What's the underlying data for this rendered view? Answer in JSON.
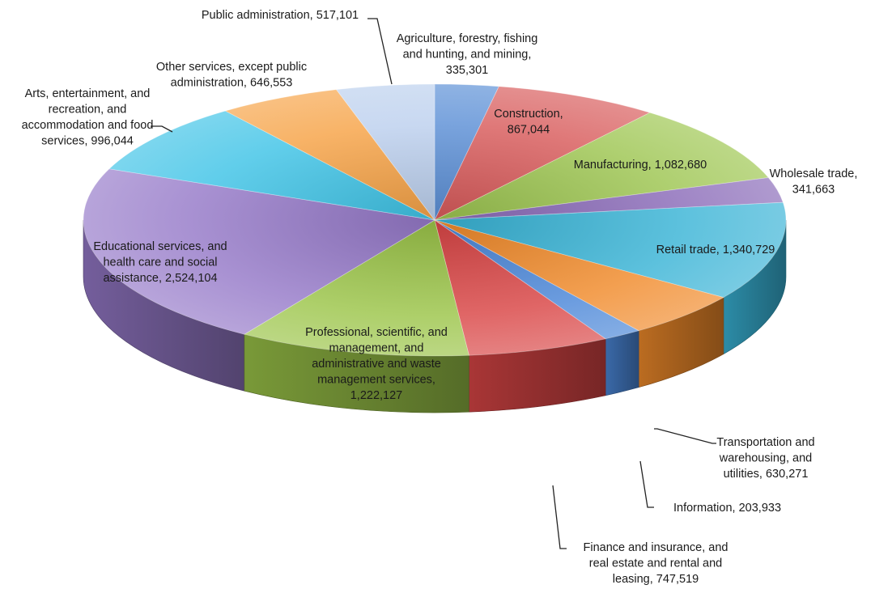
{
  "chart_data": {
    "type": "pie",
    "title": "",
    "slices": [
      {
        "label": "Agriculture, forestry, fishing and hunting, and mining",
        "value": 335301,
        "display": "335,301",
        "color": "#5b8fd6"
      },
      {
        "label": "Construction",
        "value": 867044,
        "display": "867,044",
        "color": "#d85a5a"
      },
      {
        "label": "Manufacturing",
        "value": 1082680,
        "display": "1,082,680",
        "color": "#9cc54f"
      },
      {
        "label": "Wholesale trade",
        "value": 341663,
        "display": "341,663",
        "color": "#8a6ab8"
      },
      {
        "label": "Retail trade",
        "value": 1340729,
        "display": "1,340,729",
        "color": "#38b3d6"
      },
      {
        "label": "Transportation and warehousing, and utilities",
        "value": 630271,
        "display": "630,271",
        "color": "#f08a2a"
      },
      {
        "label": "Information",
        "value": 203933,
        "display": "203,933",
        "color": "#4a86d8"
      },
      {
        "label": "Finance and insurance, and real estate and rental and leasing",
        "value": 747519,
        "display": "747,519",
        "color": "#d94545"
      },
      {
        "label": "Professional, scientific, and management, and administrative and waste management services",
        "value": 1222127,
        "display": "1,222,127",
        "color": "#9bc448"
      },
      {
        "label": "Educational services, and health care and social assistance",
        "value": 2524104,
        "display": "2,524,104",
        "color": "#9579c8"
      },
      {
        "label": "Arts, entertainment, and recreation, and accommodation and food services",
        "value": 996044,
        "display": "996,044",
        "color": "#3ec3e6"
      },
      {
        "label": "Other services, except public administration",
        "value": 646553,
        "display": "646,553",
        "color": "#f6a246"
      },
      {
        "label": "Public administration",
        "value": 517101,
        "display": "517,101",
        "color": "#bcd0ee"
      }
    ],
    "labels": [
      {
        "lines": [
          "Public administration, 517,101"
        ]
      },
      {
        "lines": [
          "Agriculture, forestry, fishing",
          "and hunting, and mining,",
          "335,301"
        ]
      },
      {
        "lines": [
          "Other services, except public",
          "administration, 646,553"
        ]
      },
      {
        "lines": [
          "Arts, entertainment, and",
          "recreation, and",
          "accommodation and food",
          "services, 996,044"
        ]
      },
      {
        "lines": [
          "Construction,",
          "867,044"
        ]
      },
      {
        "lines": [
          "Manufacturing, 1,082,680"
        ]
      },
      {
        "lines": [
          "Wholesale trade,",
          "341,663"
        ]
      },
      {
        "lines": [
          "Retail trade, 1,340,729"
        ]
      },
      {
        "lines": [
          "Educational services, and",
          "health care and social",
          "assistance, 2,524,104"
        ]
      },
      {
        "lines": [
          "Professional, scientific, and",
          "management, and",
          "administrative and waste",
          "management services,",
          "1,222,127"
        ]
      },
      {
        "lines": [
          "Transportation and",
          "warehousing, and",
          "utilities, 630,271"
        ]
      },
      {
        "lines": [
          "Information, 203,933"
        ]
      },
      {
        "lines": [
          "Finance and insurance, and",
          "real estate and rental and",
          "leasing, 747,519"
        ]
      }
    ],
    "legend": "none",
    "grid": false
  }
}
